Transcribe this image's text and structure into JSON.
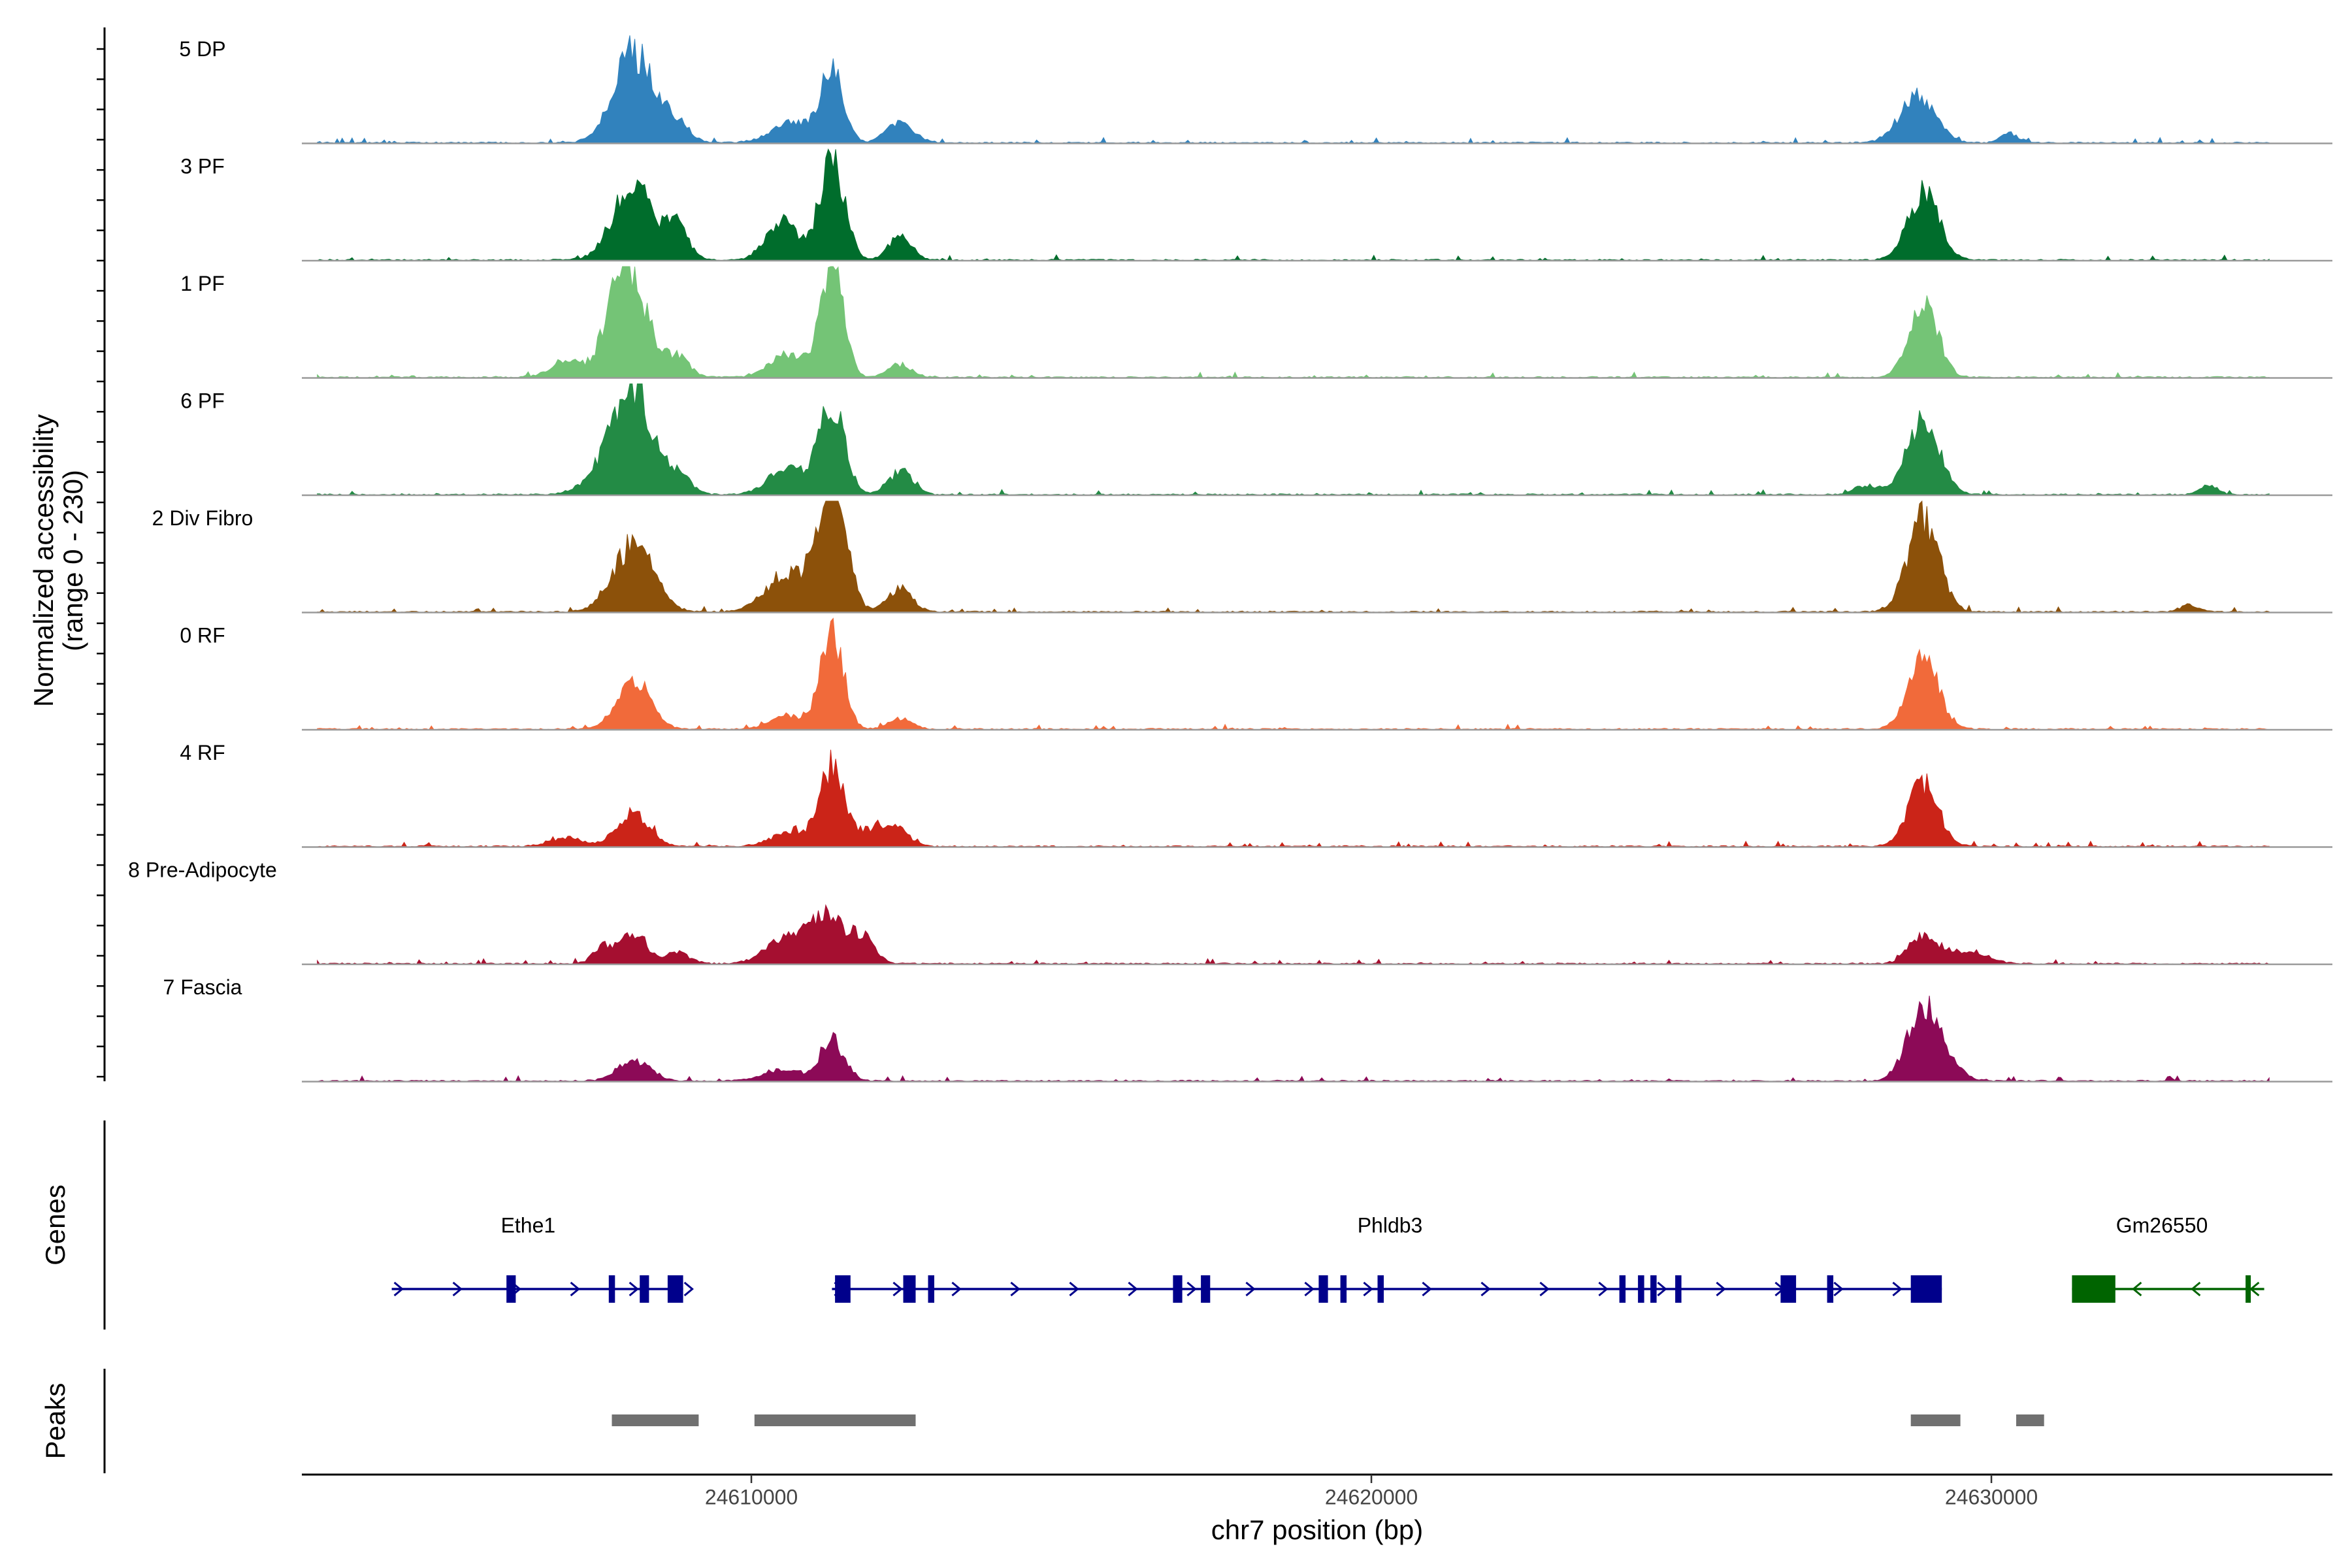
{
  "chart_data": {
    "type": "area",
    "title": "",
    "xlabel": "chr7 position (bp)",
    "ylabel": "Normalized accessibility",
    "ylabel_range": "(range 0 - 230)",
    "ylim": [
      0,
      230
    ],
    "xlim": [
      24602750,
      24635500
    ],
    "x_ticks": [
      24610000,
      24620000,
      24630000
    ],
    "x_tick_labels": [
      "24610000",
      "24620000",
      "24630000"
    ],
    "series": [
      {
        "name": "5 DP",
        "color": "#3182bd",
        "peaks": [
          [
            24608100,
            200,
            320
          ],
          [
            24608800,
            40,
            200
          ],
          [
            24610700,
            45,
            350
          ],
          [
            24611300,
            150,
            180
          ],
          [
            24612400,
            45,
            220
          ],
          [
            24628800,
            105,
            280
          ],
          [
            24630300,
            20,
            150
          ]
        ]
      },
      {
        "name": "3 PF",
        "color": "#006d2c",
        "peaks": [
          [
            24608100,
            170,
            320
          ],
          [
            24608800,
            70,
            180
          ],
          [
            24610500,
            90,
            250
          ],
          [
            24611300,
            225,
            200
          ],
          [
            24612400,
            55,
            180
          ],
          [
            24628900,
            150,
            250
          ]
        ]
      },
      {
        "name": "1 PF",
        "color": "#74c476",
        "peaks": [
          [
            24607000,
            35,
            250
          ],
          [
            24608000,
            250,
            300
          ],
          [
            24608800,
            45,
            200
          ],
          [
            24610600,
            50,
            300
          ],
          [
            24611300,
            250,
            180
          ],
          [
            24612400,
            30,
            180
          ],
          [
            24628900,
            170,
            230
          ]
        ]
      },
      {
        "name": "6 PF",
        "color": "#238b45",
        "peaks": [
          [
            24607600,
            45,
            300
          ],
          [
            24608100,
            220,
            300
          ],
          [
            24608800,
            45,
            200
          ],
          [
            24610600,
            60,
            300
          ],
          [
            24611300,
            200,
            200
          ],
          [
            24612400,
            50,
            200
          ],
          [
            24628000,
            20,
            200
          ],
          [
            24628900,
            160,
            260
          ],
          [
            24633500,
            20,
            150
          ]
        ]
      },
      {
        "name": "2 Div Fibro",
        "color": "#8c510a",
        "peaks": [
          [
            24608100,
            150,
            320
          ],
          [
            24610600,
            80,
            350
          ],
          [
            24611300,
            300,
            220
          ],
          [
            24612400,
            50,
            200
          ],
          [
            24628900,
            210,
            250
          ],
          [
            24633200,
            15,
            150
          ]
        ]
      },
      {
        "name": "0 RF",
        "color": "#f16a3a",
        "peaks": [
          [
            24608100,
            110,
            260
          ],
          [
            24610600,
            30,
            300
          ],
          [
            24611300,
            220,
            180
          ],
          [
            24612400,
            25,
            180
          ],
          [
            24628900,
            160,
            240
          ]
        ]
      },
      {
        "name": "4 RF",
        "color": "#cb2418",
        "peaks": [
          [
            24607000,
            20,
            250
          ],
          [
            24608100,
            75,
            260
          ],
          [
            24610600,
            30,
            300
          ],
          [
            24611300,
            175,
            200
          ],
          [
            24612000,
            40,
            250
          ],
          [
            24612400,
            30,
            180
          ],
          [
            24628900,
            140,
            240
          ]
        ]
      },
      {
        "name": "8 Pre-Adipocyte",
        "color": "#a50f30",
        "peaks": [
          [
            24607600,
            40,
            150
          ],
          [
            24608100,
            70,
            200
          ],
          [
            24608800,
            25,
            200
          ],
          [
            24610500,
            50,
            300
          ],
          [
            24611200,
            105,
            300
          ],
          [
            24611800,
            50,
            200
          ],
          [
            24628900,
            65,
            220
          ],
          [
            24629600,
            30,
            300
          ]
        ]
      },
      {
        "name": "7 Fascia",
        "color": "#8c0a57",
        "peaks": [
          [
            24608100,
            45,
            260
          ],
          [
            24610500,
            25,
            300
          ],
          [
            24611300,
            90,
            200
          ],
          [
            24628900,
            175,
            250
          ],
          [
            24629400,
            20,
            200
          ]
        ]
      }
    ],
    "genes": [
      {
        "name": "Ethe1",
        "strand": "+",
        "color": "#00008b",
        "start": 24604200,
        "end": 24608900,
        "label_x": 24606400,
        "exons": [
          [
            24606050,
            24606200
          ],
          [
            24607700,
            24607800
          ],
          [
            24608200,
            24608350
          ],
          [
            24608650,
            24608900
          ]
        ]
      },
      {
        "name": "Phldb3",
        "strand": "+",
        "color": "#00008b",
        "start": 24611300,
        "end": 24629200,
        "label_x": 24620300,
        "exons": [
          [
            24611350,
            24611600
          ],
          [
            24612450,
            24612650
          ],
          [
            24612850,
            24612950
          ],
          [
            24616800,
            24616950
          ],
          [
            24617250,
            24617400
          ],
          [
            24619150,
            24619300
          ],
          [
            24619500,
            24619600
          ],
          [
            24620100,
            24620200
          ],
          [
            24624000,
            24624100
          ],
          [
            24624300,
            24624400
          ],
          [
            24624500,
            24624600
          ],
          [
            24624900,
            24625000
          ],
          [
            24626600,
            24626850
          ],
          [
            24627350,
            24627450
          ],
          [
            24628700,
            24629200
          ]
        ]
      },
      {
        "name": "Gm26550",
        "strand": "-",
        "color": "#006400",
        "start": 24631300,
        "end": 24634400,
        "label_x": 24632750,
        "exons": [
          [
            24631300,
            24632000
          ],
          [
            24634100,
            24634150
          ]
        ]
      }
    ],
    "peaks_track": [
      [
        24607750,
        24609150
      ],
      [
        24610050,
        24612650
      ],
      [
        24628700,
        24629500
      ],
      [
        24630400,
        24630850
      ]
    ],
    "panel_labels": {
      "genes": "Genes",
      "peaks": "Peaks"
    }
  }
}
